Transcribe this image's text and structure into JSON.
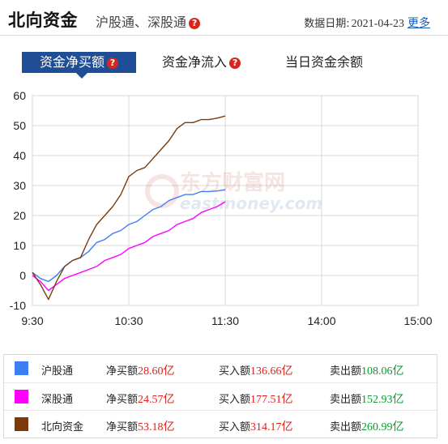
{
  "header": {
    "title": "北向资金",
    "subtitle": "沪股通、深股通",
    "help_glyph": "?",
    "date_label": "数据日期:",
    "date_value": "2021-04-23",
    "more_link": "更多"
  },
  "tabs": [
    {
      "label": "资金净买额",
      "active": true,
      "has_help": true
    },
    {
      "label": "资金净流入",
      "active": false,
      "has_help": true
    },
    {
      "label": "当日资金余额",
      "active": false,
      "has_help": false
    }
  ],
  "watermark": {
    "line1": "东方财富网",
    "line2": "eastmoney.com"
  },
  "colors": {
    "沪股通": "#3d7ef0",
    "深股通": "#ff00ff",
    "北向资金": "#7a3a0d",
    "grid": "#d9d9d9"
  },
  "chart_data": {
    "type": "line",
    "xlabel": "",
    "ylabel": "",
    "x_ticks": [
      "9:30",
      "10:30",
      "11:30",
      "14:00",
      "15:00"
    ],
    "y_ticks": [
      -10,
      0,
      10,
      20,
      30,
      40,
      50,
      60
    ],
    "ylim": [
      -10,
      60
    ],
    "grid": true,
    "x_minutes": [
      0,
      5,
      10,
      15,
      20,
      25,
      30,
      35,
      40,
      45,
      50,
      55,
      60,
      65,
      70,
      75,
      80,
      85,
      90,
      95,
      100,
      105,
      110,
      115,
      120
    ],
    "series": [
      {
        "name": "沪股通",
        "values": [
          1,
          -1,
          -2,
          0,
          3,
          5,
          6,
          8,
          11,
          12,
          14,
          15,
          17,
          18,
          20,
          22,
          23,
          25,
          26,
          27,
          27,
          28,
          28,
          28.2,
          28.6
        ]
      },
      {
        "name": "深股通",
        "values": [
          0,
          -2,
          -5,
          -3,
          -1,
          0,
          1,
          2,
          3,
          5,
          6,
          7,
          9,
          10,
          11,
          13,
          14,
          15,
          17,
          18,
          19,
          21,
          22,
          23,
          24.57
        ]
      },
      {
        "name": "北向资金",
        "values": [
          1,
          -3,
          -8,
          -2,
          3,
          5,
          6,
          12,
          17,
          20,
          23,
          27,
          33,
          35,
          36,
          39,
          42,
          45,
          49,
          51,
          51,
          52,
          52,
          52.5,
          53.18
        ]
      }
    ]
  },
  "summary": {
    "net_label": "净买额",
    "buy_label": "买入额",
    "sell_label": "卖出额",
    "rows": [
      {
        "name": "沪股通",
        "net": "28.60亿",
        "buy": "136.66亿",
        "sell": "108.06亿"
      },
      {
        "name": "深股通",
        "net": "24.57亿",
        "buy": "177.51亿",
        "sell": "152.93亿"
      },
      {
        "name": "北向资金",
        "net": "53.18亿",
        "buy": "314.17亿",
        "sell": "260.99亿"
      }
    ]
  }
}
